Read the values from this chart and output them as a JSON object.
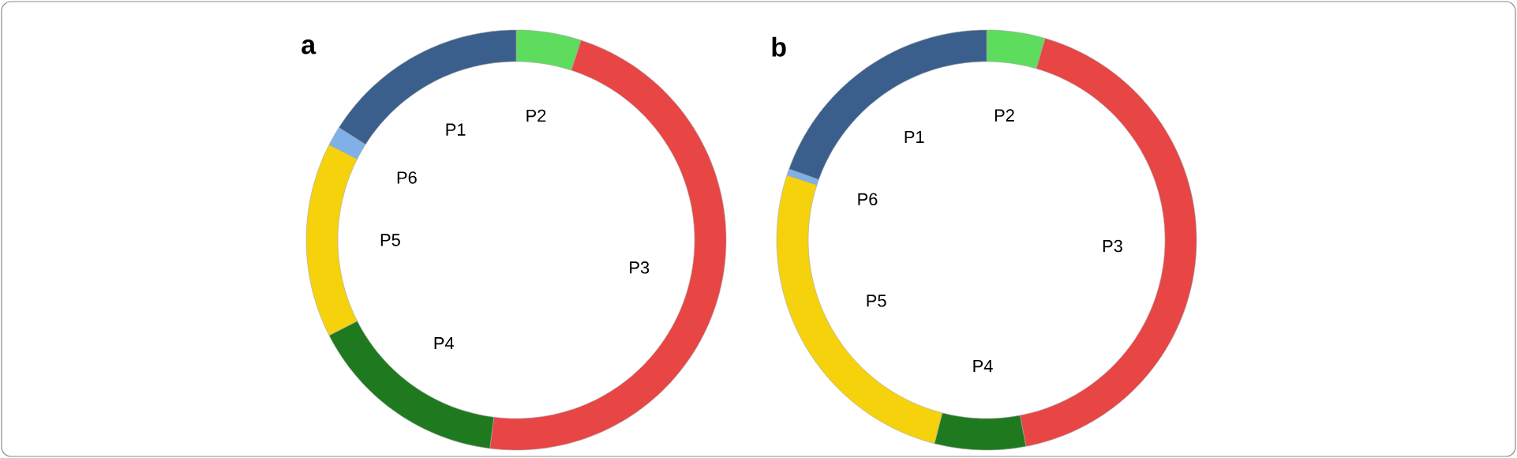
{
  "chart_data": [
    {
      "type": "donut",
      "title": "a",
      "categories": [
        "P2",
        "P3",
        "P4",
        "P5",
        "P6",
        "P1"
      ],
      "values": [
        5,
        47,
        15.5,
        15,
        1.5,
        16
      ],
      "colors": [
        "#5ddc5d",
        "#e84545",
        "#1f7a1f",
        "#f5d20c",
        "#7fb0e8",
        "#3a5f8c"
      ]
    },
    {
      "type": "donut",
      "title": "b",
      "categories": [
        "P2",
        "P3",
        "P4",
        "P5",
        "P6",
        "P1"
      ],
      "values": [
        4.5,
        42.5,
        7,
        26,
        0.5,
        19.5
      ],
      "colors": [
        "#5ddc5d",
        "#e84545",
        "#1f7a1f",
        "#f5d20c",
        "#7fb0e8",
        "#3a5f8c"
      ]
    }
  ]
}
